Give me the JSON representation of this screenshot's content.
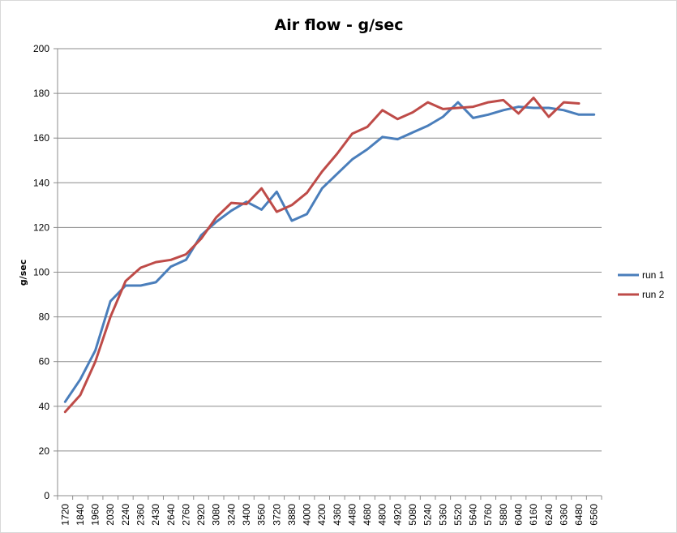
{
  "chart_data": {
    "type": "line",
    "title": "Air flow - g/sec",
    "xlabel": "",
    "ylabel": "g/sec",
    "ylim": [
      0,
      200
    ],
    "yticks": [
      "0",
      "20",
      "40",
      "60",
      "80",
      "100",
      "120",
      "140",
      "160",
      "180",
      "200"
    ],
    "grid": true,
    "legend_position": "right",
    "categories": [
      "1720",
      "1840",
      "1960",
      "2030",
      "2240",
      "2360",
      "2430",
      "2640",
      "2760",
      "2920",
      "3080",
      "3240",
      "3400",
      "3560",
      "3720",
      "3880",
      "4000",
      "4200",
      "4360",
      "4480",
      "4680",
      "4800",
      "4920",
      "5080",
      "5240",
      "5360",
      "5520",
      "5640",
      "5760",
      "5880",
      "6040",
      "6160",
      "6240",
      "6360",
      "6480",
      "6560"
    ],
    "series": [
      {
        "name": "run 1",
        "color": "#4a7ebb",
        "values": [
          42,
          52,
          65,
          87,
          94,
          94,
          95.5,
          102.5,
          105.5,
          116.5,
          122.5,
          127.5,
          131.5,
          128,
          136,
          123,
          126,
          137.5,
          144,
          150.5,
          155,
          160.5,
          159.5,
          162.5,
          165.5,
          169.5,
          176,
          169,
          170.5,
          172.5,
          174,
          173.5,
          173.5,
          172.5,
          170.5,
          170.5
        ]
      },
      {
        "name": "run 2",
        "color": "#be4b48",
        "values": [
          37.5,
          45,
          60,
          80,
          96,
          102,
          104.5,
          105.5,
          108,
          115,
          124.5,
          131,
          130.5,
          137.5,
          127,
          130,
          135.5,
          145,
          153,
          162,
          165,
          172.5,
          168.5,
          171.5,
          176,
          173,
          173.5,
          174,
          176,
          177,
          171,
          178,
          169.5,
          176,
          175.5,
          null
        ]
      }
    ]
  }
}
